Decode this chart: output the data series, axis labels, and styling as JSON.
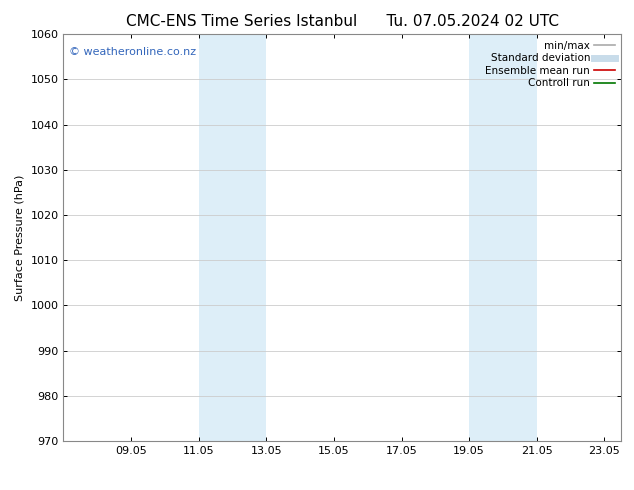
{
  "title_left": "CMC-ENS Time Series Istanbul",
  "title_right": "Tu. 07.05.2024 02 UTC",
  "ylabel": "Surface Pressure (hPa)",
  "ylim": [
    970,
    1060
  ],
  "yticks": [
    970,
    980,
    990,
    1000,
    1010,
    1020,
    1030,
    1040,
    1050,
    1060
  ],
  "xlim_start": 7.05,
  "xlim_end": 23.55,
  "xtick_labels": [
    "09.05",
    "11.05",
    "13.05",
    "15.05",
    "17.05",
    "19.05",
    "21.05",
    "23.05"
  ],
  "xtick_positions": [
    9.05,
    11.05,
    13.05,
    15.05,
    17.05,
    19.05,
    21.05,
    23.05
  ],
  "shaded_bands": [
    {
      "x_start": 11.05,
      "x_end": 13.05
    },
    {
      "x_start": 19.05,
      "x_end": 21.05
    }
  ],
  "shade_color": "#ddeef8",
  "watermark_text": "© weatheronline.co.nz",
  "watermark_color": "#3366bb",
  "legend_entries": [
    {
      "label": "min/max",
      "color": "#aaaaaa",
      "lw": 1.2
    },
    {
      "label": "Standard deviation",
      "color": "#c8dcea",
      "lw": 5
    },
    {
      "label": "Ensemble mean run",
      "color": "#cc0000",
      "lw": 1.2
    },
    {
      "label": "Controll run",
      "color": "#007700",
      "lw": 1.2
    }
  ],
  "bg_color": "#ffffff",
  "grid_color": "#cccccc",
  "title_fontsize": 11,
  "axis_fontsize": 8,
  "tick_fontsize": 8,
  "legend_fontsize": 7.5,
  "watermark_fontsize": 8
}
